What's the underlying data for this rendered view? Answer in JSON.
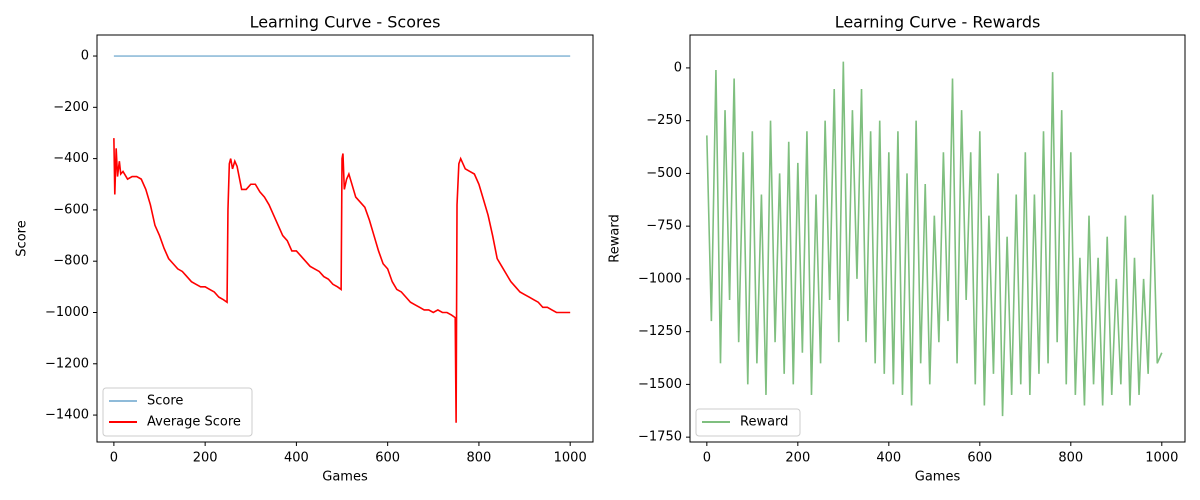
{
  "chart_data": [
    {
      "type": "line",
      "title": "Learning Curve - Scores",
      "xlabel": "Games",
      "ylabel": "Score",
      "xlim": [
        -37,
        1050
      ],
      "ylim": [
        -1505,
        82
      ],
      "xticks": [
        0,
        200,
        400,
        600,
        800,
        1000
      ],
      "yticks": [
        0,
        {
          "value": -200,
          "label": "−200"
        },
        {
          "value": -400,
          "label": "−400"
        },
        {
          "value": -600,
          "label": "−600"
        },
        {
          "value": -800,
          "label": "−800"
        },
        {
          "value": -1000,
          "label": "−1000"
        },
        {
          "value": -1200,
          "label": "−1200"
        },
        {
          "value": -1400,
          "label": "−1400"
        }
      ],
      "legend": "lower left",
      "series": [
        {
          "name": "Score",
          "color": "#1f77b4",
          "alpha": 0.5,
          "x": [
            0,
            1000
          ],
          "values": [
            0,
            0
          ]
        },
        {
          "name": "Average Score",
          "color": "#ff0000",
          "alpha": 1,
          "x": [
            0,
            2,
            5,
            8,
            12,
            15,
            20,
            30,
            40,
            50,
            60,
            70,
            80,
            90,
            100,
            110,
            120,
            130,
            140,
            150,
            160,
            170,
            180,
            190,
            200,
            210,
            220,
            230,
            240,
            248,
            250,
            253,
            256,
            260,
            265,
            270,
            280,
            290,
            300,
            310,
            320,
            330,
            340,
            350,
            360,
            370,
            380,
            390,
            400,
            410,
            420,
            430,
            440,
            450,
            460,
            470,
            480,
            490,
            498,
            500,
            502,
            505,
            510,
            515,
            520,
            530,
            540,
            550,
            560,
            570,
            580,
            590,
            600,
            610,
            620,
            630,
            640,
            650,
            660,
            670,
            680,
            690,
            700,
            710,
            720,
            730,
            740,
            748,
            750,
            752,
            756,
            760,
            770,
            780,
            790,
            800,
            810,
            820,
            830,
            840,
            850,
            860,
            870,
            880,
            890,
            900,
            910,
            920,
            930,
            940,
            950,
            960,
            970,
            980,
            990,
            1000
          ],
          "values": [
            -320,
            -540,
            -360,
            -470,
            -410,
            -460,
            -450,
            -480,
            -470,
            -470,
            -480,
            -520,
            -580,
            -660,
            -700,
            -750,
            -790,
            -810,
            -830,
            -840,
            -860,
            -880,
            -890,
            -900,
            -900,
            -910,
            -920,
            -940,
            -950,
            -960,
            -600,
            -420,
            -400,
            -440,
            -410,
            -430,
            -520,
            -520,
            -500,
            -500,
            -530,
            -550,
            -580,
            -620,
            -660,
            -700,
            -720,
            -760,
            -760,
            -780,
            -800,
            -820,
            -830,
            -840,
            -860,
            -870,
            -890,
            -900,
            -910,
            -400,
            -380,
            -520,
            -480,
            -460,
            -490,
            -550,
            -570,
            -590,
            -640,
            -700,
            -760,
            -810,
            -830,
            -880,
            -910,
            -920,
            -940,
            -960,
            -970,
            -980,
            -990,
            -990,
            -1000,
            -990,
            -1000,
            -1000,
            -1010,
            -1020,
            -1430,
            -580,
            -420,
            -400,
            -440,
            -450,
            -460,
            -500,
            -560,
            -620,
            -700,
            -790,
            -820,
            -850,
            -880,
            -900,
            -920,
            -930,
            -940,
            -950,
            -960,
            -980,
            -980,
            -990,
            -1000,
            -1000,
            -1000,
            -1000
          ]
        }
      ]
    },
    {
      "type": "line",
      "title": "Learning Curve - Rewards",
      "xlabel": "Games",
      "ylabel": "Reward",
      "xlim": [
        -37,
        1051
      ],
      "ylim": [
        -1773,
        156
      ],
      "xticks": [
        0,
        200,
        400,
        600,
        800,
        1000
      ],
      "yticks": [
        0,
        {
          "value": -250,
          "label": "−250"
        },
        {
          "value": -500,
          "label": "−500"
        },
        {
          "value": -750,
          "label": "−750"
        },
        {
          "value": -1000,
          "label": "−1000"
        },
        {
          "value": -1250,
          "label": "−1250"
        },
        {
          "value": -1500,
          "label": "−1500"
        },
        {
          "value": -1750,
          "label": "−1750"
        }
      ],
      "legend": "lower left",
      "series": [
        {
          "name": "Reward",
          "color": "#008000",
          "alpha": 0.5,
          "x": [
            0,
            10,
            20,
            30,
            40,
            50,
            60,
            70,
            80,
            90,
            100,
            110,
            120,
            130,
            140,
            150,
            160,
            170,
            180,
            190,
            200,
            210,
            220,
            230,
            240,
            250,
            260,
            270,
            280,
            290,
            300,
            310,
            320,
            330,
            340,
            350,
            360,
            370,
            380,
            390,
            400,
            410,
            420,
            430,
            440,
            450,
            460,
            470,
            480,
            490,
            500,
            510,
            520,
            530,
            540,
            550,
            560,
            570,
            580,
            590,
            600,
            610,
            620,
            630,
            640,
            650,
            660,
            670,
            680,
            690,
            700,
            710,
            720,
            730,
            740,
            750,
            760,
            770,
            780,
            790,
            800,
            810,
            820,
            830,
            840,
            850,
            860,
            870,
            880,
            890,
            900,
            910,
            920,
            930,
            940,
            950,
            960,
            970,
            980,
            990,
            1000
          ],
          "values": [
            -320,
            -1200,
            -10,
            -1400,
            -200,
            -1100,
            -50,
            -1300,
            -400,
            -1500,
            -300,
            -1400,
            -600,
            -1550,
            -250,
            -1300,
            -500,
            -1450,
            -350,
            -1500,
            -450,
            -1350,
            -300,
            -1550,
            -600,
            -1400,
            -250,
            -1100,
            -100,
            -1300,
            30,
            -1200,
            -200,
            -1000,
            -100,
            -1300,
            -300,
            -1400,
            -250,
            -1450,
            -400,
            -1500,
            -300,
            -1550,
            -500,
            -1600,
            -250,
            -1400,
            -550,
            -1500,
            -700,
            -1300,
            -400,
            -1200,
            -50,
            -1400,
            -200,
            -1100,
            -400,
            -1500,
            -300,
            -1600,
            -700,
            -1450,
            -500,
            -1650,
            -800,
            -1550,
            -600,
            -1500,
            -400,
            -1550,
            -600,
            -1450,
            -300,
            -1400,
            -20,
            -1300,
            -200,
            -1500,
            -400,
            -1550,
            -900,
            -1600,
            -700,
            -1500,
            -900,
            -1600,
            -800,
            -1550,
            -1000,
            -1500,
            -700,
            -1600,
            -900,
            -1550,
            -1000,
            -1450,
            -600,
            -1400,
            -1350
          ]
        }
      ]
    }
  ]
}
